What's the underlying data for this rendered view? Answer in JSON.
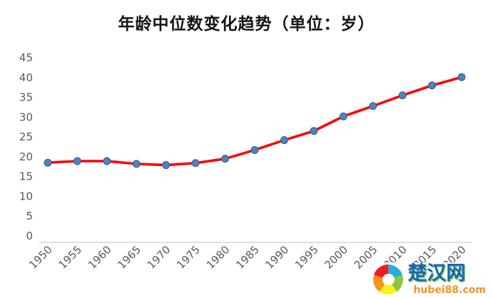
{
  "chart_data": {
    "type": "line",
    "title": "年龄中位数变化趋势（单位：岁）",
    "categories": [
      "1950",
      "1955",
      "1960",
      "1965",
      "1970",
      "1975",
      "1980",
      "1985",
      "1990",
      "1995",
      "2000",
      "2005",
      "2010",
      "2015",
      "2020"
    ],
    "values": [
      18.5,
      18.9,
      18.9,
      18.2,
      17.9,
      18.4,
      19.5,
      21.7,
      24.2,
      26.5,
      30.2,
      32.8,
      35.5,
      38.0,
      40.1
    ],
    "xlabel": "",
    "ylabel": "",
    "ylim": [
      0,
      45
    ],
    "y_ticks": [
      0,
      5,
      10,
      15,
      20,
      25,
      30,
      35,
      40,
      45
    ],
    "grid": false,
    "legend_position": "none",
    "line_color": "#fe0000",
    "marker_fill": "#4f81bd",
    "marker_stroke": "#385d8a",
    "axis_label_color": "#595959"
  },
  "watermark": {
    "site_name": "楚汉网",
    "site_url": "hubei88.com"
  }
}
